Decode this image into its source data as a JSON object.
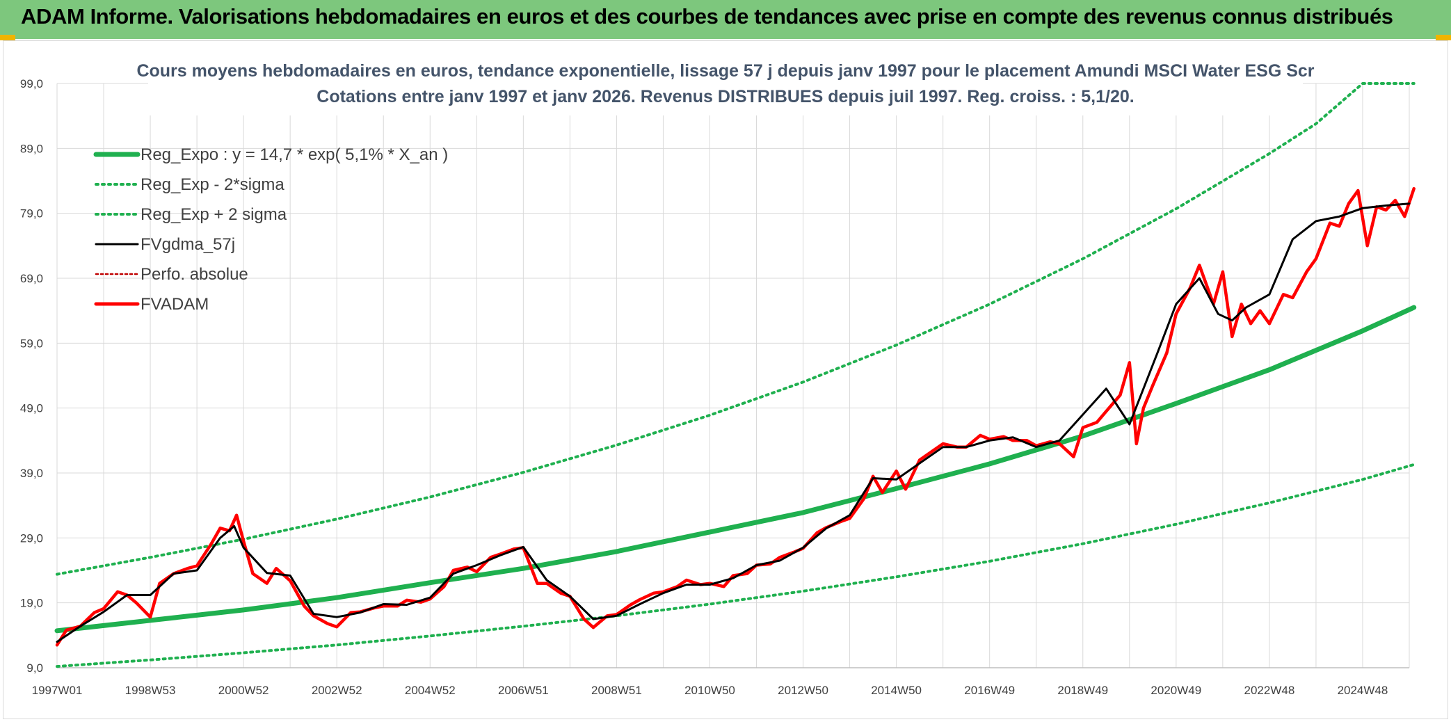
{
  "banner": {
    "title": "ADAM Informe. Valorisations hebdomadaires en euros et des courbes de tendances avec prise en compte des revenus connus distribués"
  },
  "colors": {
    "banner_bg": "#7dc77d",
    "trend_green": "#1fb04f",
    "price_red": "#ff0000",
    "smooth_black": "#000000",
    "perf_dotted": "#c00000",
    "grid": "#d9d9d9",
    "title_text": "#44546a"
  },
  "chart_data": {
    "type": "line",
    "title_lines": [
      "Cours moyens hebdomadaires en euros, tendance exponentielle, lissage 57 j depuis janv 1997 pour le placement Amundi MSCI Water ESG Scr",
      "Cotations entre janv 1997 et janv 2026. Revenus DISTRIBUES depuis juil 1997. Reg. croiss. : 5,1/20."
    ],
    "ylim": [
      9.0,
      99.0
    ],
    "yticks": [
      "9,0",
      "19,0",
      "29,0",
      "39,0",
      "49,0",
      "59,0",
      "69,0",
      "79,0",
      "89,0",
      "99,0"
    ],
    "xlim": [
      1997.0,
      2026.0
    ],
    "xticks": [
      {
        "label": "1997W01",
        "x": 1997.0
      },
      {
        "label": "1998W53",
        "x": 1999.0
      },
      {
        "label": "2000W52",
        "x": 2001.0
      },
      {
        "label": "2002W52",
        "x": 2003.0
      },
      {
        "label": "2004W52",
        "x": 2005.0
      },
      {
        "label": "2006W51",
        "x": 2007.0
      },
      {
        "label": "2008W51",
        "x": 2009.0
      },
      {
        "label": "2010W50",
        "x": 2011.0
      },
      {
        "label": "2012W50",
        "x": 2013.0
      },
      {
        "label": "2014W50",
        "x": 2015.0
      },
      {
        "label": "2016W49",
        "x": 2017.0
      },
      {
        "label": "2018W49",
        "x": 2019.0
      },
      {
        "label": "2020W49",
        "x": 2021.0
      },
      {
        "label": "2022W48",
        "x": 2023.0
      },
      {
        "label": "2024W48",
        "x": 2025.0
      }
    ],
    "grid": true,
    "legend_position": "top-left",
    "legend": [
      {
        "label": "Reg_Expo : y = 14,7 * exp( 5,1% *  X_an )",
        "style": "solid-thick",
        "color": "#1fb04f"
      },
      {
        "label": "Reg_Exp - 2*sigma",
        "style": "dotted",
        "color": "#1fb04f"
      },
      {
        "label": "Reg_Exp + 2 sigma",
        "style": "dotted",
        "color": "#1fb04f"
      },
      {
        "label": "FVgdma_57j",
        "style": "solid",
        "color": "#000000"
      },
      {
        "label": "Perfo. absolue",
        "style": "dotted-thin",
        "color": "#c00000"
      },
      {
        "label": "FVADAM",
        "style": "solid-thick",
        "color": "#ff0000"
      }
    ],
    "regression": {
      "a": 14.7,
      "rate": 0.051,
      "start_year": 1997.0
    },
    "series": [
      {
        "name": "Reg_Expo : y = 14,7 * exp( 5,1% *  X_an )",
        "x": [
          1997.0,
          1999.0,
          2001.0,
          2003.0,
          2005.0,
          2007.0,
          2009.0,
          2011.0,
          2013.0,
          2015.0,
          2017.0,
          2019.0,
          2021.0,
          2023.0,
          2025.0,
          2026.1
        ],
        "y": [
          14.7,
          16.3,
          17.9,
          19.8,
          22.1,
          24.3,
          26.9,
          29.9,
          32.9,
          36.6,
          40.4,
          44.7,
          49.7,
          54.9,
          60.9,
          64.5
        ]
      },
      {
        "name": "Reg_Exp - 2*sigma",
        "x": [
          1997.0,
          1999.0,
          2001.0,
          2003.0,
          2005.0,
          2007.0,
          2009.0,
          2011.0,
          2013.0,
          2015.0,
          2017.0,
          2019.0,
          2021.0,
          2023.0,
          2025.0,
          2026.1
        ],
        "y": [
          9.2,
          10.2,
          11.3,
          12.5,
          13.9,
          15.4,
          17.0,
          18.8,
          20.8,
          23.0,
          25.4,
          28.1,
          31.1,
          34.4,
          38.0,
          40.3
        ]
      },
      {
        "name": "Reg_Exp + 2 sigma",
        "x": [
          1997.0,
          1999.0,
          2001.0,
          2003.0,
          2005.0,
          2007.0,
          2009.0,
          2011.0,
          2013.0,
          2015.0,
          2017.0,
          2019.0,
          2021.0,
          2023.0,
          2024.0,
          2025.0,
          2026.1
        ],
        "y": [
          23.4,
          26.0,
          28.8,
          31.9,
          35.3,
          39.1,
          43.3,
          47.9,
          53.0,
          58.7,
          65.0,
          72.0,
          79.7,
          88.2,
          92.8,
          99.0,
          99.0
        ]
      },
      {
        "name": "FVgdma_57j",
        "x": [
          1997.0,
          1997.5,
          1998.0,
          1998.5,
          1999.0,
          1999.5,
          2000.0,
          2000.5,
          2000.8,
          2001.0,
          2001.5,
          2002.0,
          2002.5,
          2003.0,
          2003.5,
          2004.0,
          2004.5,
          2005.0,
          2005.5,
          2006.0,
          2006.5,
          2007.0,
          2007.5,
          2008.0,
          2008.5,
          2009.0,
          2009.5,
          2010.0,
          2010.5,
          2011.0,
          2011.5,
          2012.0,
          2012.5,
          2013.0,
          2013.5,
          2014.0,
          2014.5,
          2015.0,
          2015.5,
          2016.0,
          2016.5,
          2017.0,
          2017.5,
          2018.0,
          2018.5,
          2019.0,
          2019.5,
          2020.0,
          2020.3,
          2020.6,
          2021.0,
          2021.5,
          2021.9,
          2022.2,
          2022.5,
          2023.0,
          2023.5,
          2024.0,
          2024.5,
          2025.0,
          2025.5,
          2026.0
        ],
        "y": [
          13.0,
          15.4,
          17.6,
          20.2,
          20.2,
          23.5,
          24.0,
          29.0,
          30.8,
          27.5,
          23.6,
          23.2,
          17.3,
          16.8,
          17.5,
          18.8,
          18.7,
          19.8,
          23.5,
          24.8,
          26.3,
          27.6,
          22.5,
          20.0,
          16.5,
          17.0,
          18.8,
          20.5,
          21.8,
          21.8,
          22.8,
          24.8,
          25.5,
          27.5,
          30.5,
          32.5,
          38.2,
          38.0,
          40.5,
          43.0,
          43.0,
          44.0,
          44.5,
          43.0,
          44.0,
          48.0,
          52.0,
          46.5,
          52.0,
          57.5,
          65.0,
          69.0,
          63.5,
          62.5,
          64.5,
          66.5,
          75.0,
          77.8,
          78.5,
          79.8,
          80.2,
          80.5
        ]
      },
      {
        "name": "FVADAM",
        "x": [
          1997.0,
          1997.2,
          1997.5,
          1997.8,
          1998.0,
          1998.3,
          1998.5,
          1998.7,
          1999.0,
          1999.2,
          1999.5,
          1999.8,
          2000.0,
          2000.3,
          2000.5,
          2000.7,
          2000.85,
          2001.0,
          2001.2,
          2001.5,
          2001.7,
          2002.0,
          2002.3,
          2002.5,
          2002.8,
          2003.0,
          2003.3,
          2003.5,
          2003.8,
          2004.0,
          2004.3,
          2004.5,
          2004.8,
          2005.0,
          2005.3,
          2005.5,
          2005.8,
          2006.0,
          2006.3,
          2006.5,
          2006.8,
          2007.0,
          2007.3,
          2007.5,
          2007.8,
          2008.0,
          2008.3,
          2008.5,
          2008.8,
          2009.0,
          2009.3,
          2009.5,
          2009.8,
          2010.0,
          2010.3,
          2010.5,
          2010.8,
          2011.0,
          2011.3,
          2011.5,
          2011.8,
          2012.0,
          2012.3,
          2012.5,
          2012.8,
          2013.0,
          2013.3,
          2013.5,
          2013.8,
          2014.0,
          2014.3,
          2014.5,
          2014.7,
          2015.0,
          2015.2,
          2015.5,
          2015.8,
          2016.0,
          2016.3,
          2016.5,
          2016.8,
          2017.0,
          2017.3,
          2017.5,
          2017.8,
          2018.0,
          2018.3,
          2018.5,
          2018.8,
          2019.0,
          2019.3,
          2019.5,
          2019.8,
          2020.0,
          2020.15,
          2020.3,
          2020.5,
          2020.8,
          2021.0,
          2021.3,
          2021.5,
          2021.8,
          2022.0,
          2022.2,
          2022.4,
          2022.6,
          2022.8,
          2023.0,
          2023.3,
          2023.5,
          2023.8,
          2024.0,
          2024.3,
          2024.5,
          2024.7,
          2024.9,
          2025.1,
          2025.3,
          2025.5,
          2025.7,
          2025.9,
          2026.1
        ],
        "y": [
          12.5,
          14.8,
          15.4,
          17.5,
          18.1,
          20.7,
          20.2,
          19.0,
          16.8,
          22.0,
          23.5,
          24.3,
          24.7,
          28.0,
          30.5,
          30.1,
          32.5,
          28.5,
          23.5,
          22.0,
          24.3,
          22.4,
          18.5,
          17.0,
          15.8,
          15.3,
          17.5,
          17.6,
          18.2,
          18.5,
          18.5,
          19.4,
          19.1,
          19.6,
          21.5,
          24.0,
          24.5,
          23.8,
          26.0,
          26.5,
          27.3,
          27.5,
          22.0,
          22.0,
          20.5,
          20.0,
          16.5,
          15.2,
          17.0,
          17.2,
          18.7,
          19.5,
          20.5,
          20.7,
          21.5,
          22.5,
          21.8,
          22.0,
          21.5,
          23.2,
          23.5,
          24.8,
          25.0,
          26.0,
          26.8,
          27.4,
          29.8,
          30.6,
          31.5,
          32.0,
          35.0,
          38.5,
          36.0,
          39.3,
          36.5,
          41.0,
          42.5,
          43.5,
          43.0,
          43.0,
          44.8,
          44.2,
          44.6,
          44.0,
          44.0,
          43.2,
          43.8,
          43.5,
          41.5,
          46.0,
          46.8,
          48.5,
          51.0,
          56.0,
          43.5,
          49.0,
          52.5,
          57.5,
          63.5,
          67.5,
          71.0,
          65.0,
          70.0,
          60.0,
          65.0,
          62.0,
          64.0,
          62.0,
          66.5,
          66.0,
          70.0,
          72.0,
          77.5,
          77.0,
          80.5,
          82.5,
          74.0,
          80.0,
          79.5,
          81.0,
          78.5,
          82.8
        ]
      }
    ]
  }
}
